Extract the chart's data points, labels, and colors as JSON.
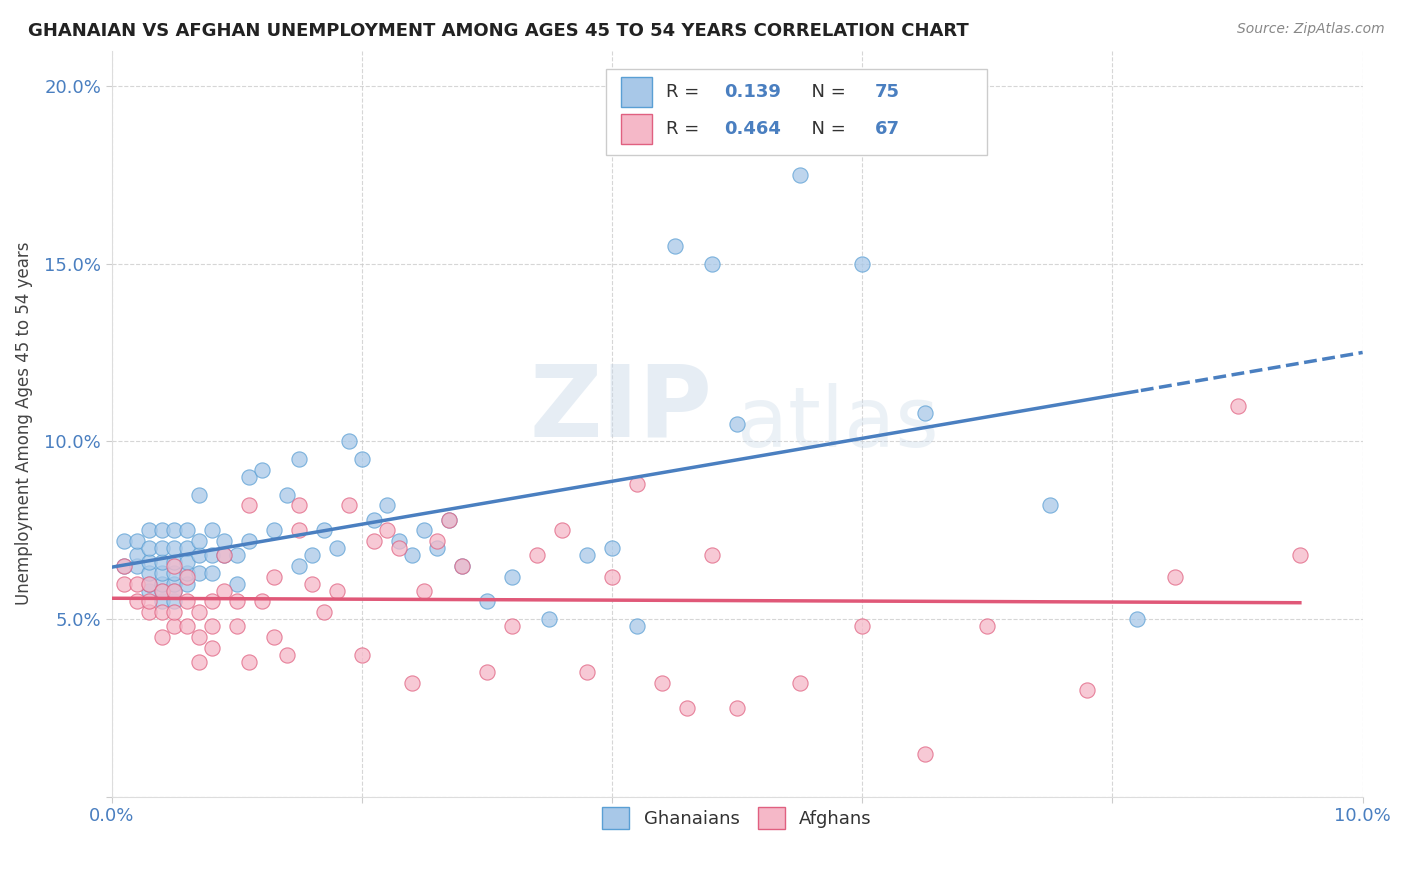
{
  "title": "GHANAIAN VS AFGHAN UNEMPLOYMENT AMONG AGES 45 TO 54 YEARS CORRELATION CHART",
  "source": "Source: ZipAtlas.com",
  "ylabel": "Unemployment Among Ages 45 to 54 years",
  "xlim": [
    0.0,
    0.1
  ],
  "ylim": [
    0.0,
    0.21
  ],
  "x_ticks": [
    0.0,
    0.02,
    0.04,
    0.06,
    0.08,
    0.1
  ],
  "x_tick_labels_show": [
    "0.0%",
    "",
    "",
    "",
    "",
    "10.0%"
  ],
  "y_ticks": [
    0.0,
    0.05,
    0.1,
    0.15,
    0.2
  ],
  "y_tick_labels": [
    "",
    "5.0%",
    "10.0%",
    "15.0%",
    "20.0%"
  ],
  "ghanaian_color": "#a8c8e8",
  "afghan_color": "#f5b8c8",
  "ghanaian_edge_color": "#5a9fd4",
  "afghan_edge_color": "#e06080",
  "ghanaian_line_color": "#4a7fc0",
  "afghan_line_color": "#e05878",
  "R_ghanaian": 0.139,
  "N_ghanaian": 75,
  "R_afghan": 0.464,
  "N_afghan": 67,
  "watermark_zip": "ZIP",
  "watermark_atlas": "atlas",
  "ghanaian_x": [
    0.001,
    0.001,
    0.002,
    0.002,
    0.002,
    0.003,
    0.003,
    0.003,
    0.003,
    0.003,
    0.003,
    0.004,
    0.004,
    0.004,
    0.004,
    0.004,
    0.004,
    0.004,
    0.005,
    0.005,
    0.005,
    0.005,
    0.005,
    0.005,
    0.005,
    0.006,
    0.006,
    0.006,
    0.006,
    0.006,
    0.007,
    0.007,
    0.007,
    0.007,
    0.008,
    0.008,
    0.008,
    0.009,
    0.009,
    0.01,
    0.01,
    0.011,
    0.011,
    0.012,
    0.013,
    0.014,
    0.015,
    0.015,
    0.016,
    0.017,
    0.018,
    0.019,
    0.02,
    0.021,
    0.022,
    0.023,
    0.024,
    0.025,
    0.026,
    0.027,
    0.028,
    0.03,
    0.032,
    0.035,
    0.038,
    0.04,
    0.042,
    0.045,
    0.048,
    0.05,
    0.055,
    0.06,
    0.065,
    0.075,
    0.082
  ],
  "ghanaian_y": [
    0.065,
    0.072,
    0.065,
    0.068,
    0.072,
    0.058,
    0.06,
    0.063,
    0.066,
    0.07,
    0.075,
    0.055,
    0.058,
    0.06,
    0.063,
    0.066,
    0.07,
    0.075,
    0.055,
    0.058,
    0.06,
    0.063,
    0.066,
    0.07,
    0.075,
    0.06,
    0.063,
    0.066,
    0.07,
    0.075,
    0.063,
    0.068,
    0.072,
    0.085,
    0.063,
    0.068,
    0.075,
    0.068,
    0.072,
    0.06,
    0.068,
    0.072,
    0.09,
    0.092,
    0.075,
    0.085,
    0.065,
    0.095,
    0.068,
    0.075,
    0.07,
    0.1,
    0.095,
    0.078,
    0.082,
    0.072,
    0.068,
    0.075,
    0.07,
    0.078,
    0.065,
    0.055,
    0.062,
    0.05,
    0.068,
    0.07,
    0.048,
    0.155,
    0.15,
    0.105,
    0.175,
    0.15,
    0.108,
    0.082,
    0.05
  ],
  "afghan_x": [
    0.001,
    0.001,
    0.002,
    0.002,
    0.003,
    0.003,
    0.003,
    0.004,
    0.004,
    0.004,
    0.005,
    0.005,
    0.005,
    0.005,
    0.006,
    0.006,
    0.006,
    0.007,
    0.007,
    0.007,
    0.008,
    0.008,
    0.008,
    0.009,
    0.009,
    0.01,
    0.01,
    0.011,
    0.011,
    0.012,
    0.013,
    0.013,
    0.014,
    0.015,
    0.015,
    0.016,
    0.017,
    0.018,
    0.019,
    0.02,
    0.021,
    0.022,
    0.023,
    0.024,
    0.025,
    0.026,
    0.027,
    0.028,
    0.03,
    0.032,
    0.034,
    0.036,
    0.038,
    0.04,
    0.042,
    0.044,
    0.046,
    0.048,
    0.05,
    0.055,
    0.06,
    0.065,
    0.07,
    0.078,
    0.085,
    0.09,
    0.095
  ],
  "afghan_y": [
    0.06,
    0.065,
    0.055,
    0.06,
    0.052,
    0.055,
    0.06,
    0.045,
    0.052,
    0.058,
    0.048,
    0.052,
    0.058,
    0.065,
    0.048,
    0.055,
    0.062,
    0.038,
    0.045,
    0.052,
    0.042,
    0.048,
    0.055,
    0.058,
    0.068,
    0.048,
    0.055,
    0.038,
    0.082,
    0.055,
    0.045,
    0.062,
    0.04,
    0.075,
    0.082,
    0.06,
    0.052,
    0.058,
    0.082,
    0.04,
    0.072,
    0.075,
    0.07,
    0.032,
    0.058,
    0.072,
    0.078,
    0.065,
    0.035,
    0.048,
    0.068,
    0.075,
    0.035,
    0.062,
    0.088,
    0.032,
    0.025,
    0.068,
    0.025,
    0.032,
    0.048,
    0.012,
    0.048,
    0.03,
    0.062,
    0.11,
    0.068
  ]
}
